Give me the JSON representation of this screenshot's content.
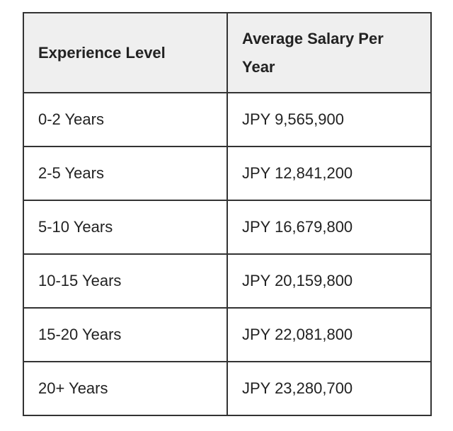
{
  "table": {
    "header": [
      "Experience Level",
      "Average Salary Per Year"
    ],
    "rows": [
      [
        "0-2 Years",
        "JPY 9,565,900"
      ],
      [
        "2-5 Years",
        "JPY 12,841,200"
      ],
      [
        "5-10 Years",
        "JPY 16,679,800"
      ],
      [
        "10-15 Years",
        "JPY 20,159,800"
      ],
      [
        "15-20 Years",
        "JPY 22,081,800"
      ],
      [
        "20+ Years",
        "JPY 23,280,700"
      ]
    ]
  }
}
